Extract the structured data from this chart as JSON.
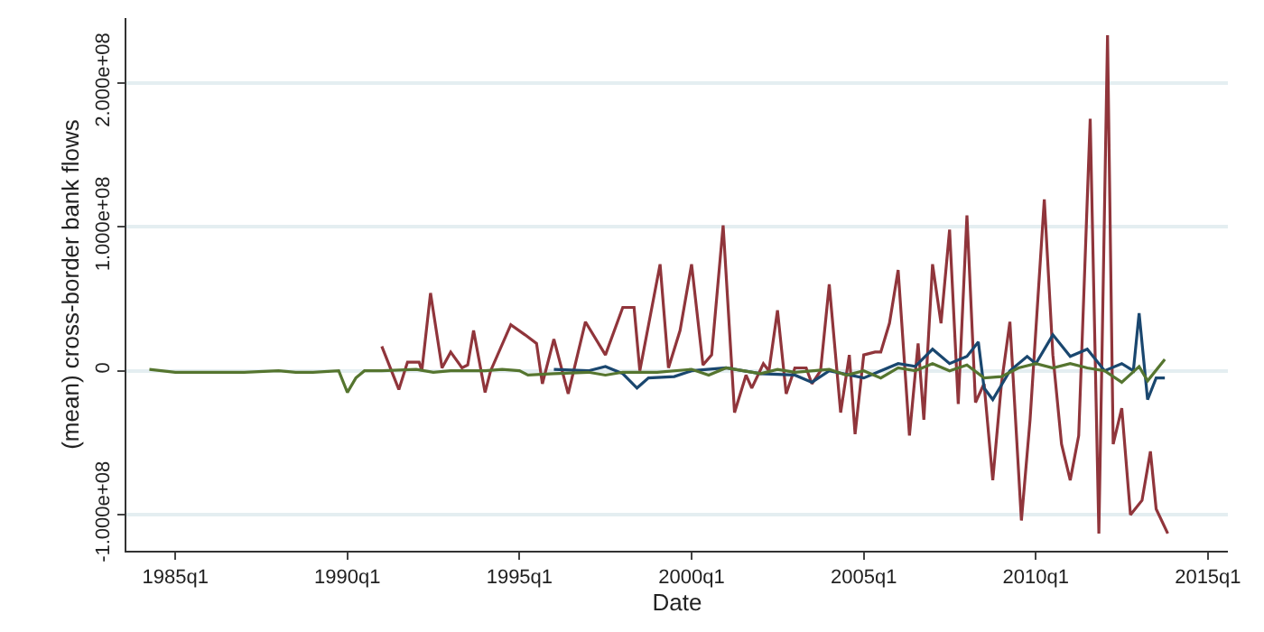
{
  "chart_data": {
    "type": "line",
    "xlabel": "Date",
    "ylabel": "(mean) cross-border bank flows",
    "xlim": [
      "1983-08",
      "2015-08"
    ],
    "xticks": [
      {
        "value": "1985-01",
        "label": "1985q1"
      },
      {
        "value": "1990-01",
        "label": "1990q1"
      },
      {
        "value": "1995-01",
        "label": "1995q1"
      },
      {
        "value": "2000-01",
        "label": "2000q1"
      },
      {
        "value": "2005-01",
        "label": "2005q1"
      },
      {
        "value": "2010-01",
        "label": "2010q1"
      },
      {
        "value": "2015-01",
        "label": "2015q1"
      }
    ],
    "ylim": [
      -125000000.0,
      245000000.0
    ],
    "yticks": [
      {
        "value": -100000000.0,
        "label": "-1.000e+08"
      },
      0,
      {
        "value": 100000000.0,
        "label": "1.000e+08"
      },
      {
        "value": 200000000.0,
        "label": "2.000e+08"
      }
    ],
    "grid": "y",
    "marker": "none",
    "line_style": "solid",
    "series": [
      {
        "color": "#90353b",
        "x": [
          "1991-01",
          "1991-07",
          "1991-10",
          "1992-02",
          "1992-03",
          "1992-06",
          "1992-10",
          "1993-01",
          "1993-05",
          "1993-07",
          "1993-09",
          "1994-01",
          "1994-03",
          "1994-10",
          "1995-03",
          "1995-07",
          "1995-09",
          "1996-01",
          "1996-06",
          "1996-12",
          "1997-07",
          "1998-01",
          "1998-05",
          "1998-07",
          "1999-02",
          "1999-05",
          "1999-09",
          "2000-01",
          "2000-05",
          "2000-08",
          "2000-12",
          "2001-04",
          "2001-08",
          "2001-10",
          "2002-02",
          "2002-04",
          "2002-07",
          "2002-10",
          "2003-01",
          "2003-05",
          "2003-07",
          "2003-10",
          "2004-01",
          "2004-05",
          "2004-08",
          "2004-10",
          "2005-01",
          "2005-05",
          "2005-07",
          "2005-10",
          "2006-01",
          "2006-05",
          "2006-08",
          "2006-10",
          "2007-01",
          "2007-04",
          "2007-07",
          "2007-10",
          "2008-01",
          "2008-04",
          "2008-07",
          "2008-10",
          "2009-01",
          "2009-04",
          "2009-08",
          "2009-11",
          "2010-04",
          "2010-07",
          "2010-10",
          "2011-01",
          "2011-04",
          "2011-08",
          "2011-11",
          "2012-02",
          "2012-04",
          "2012-07",
          "2012-10",
          "2013-02",
          "2013-05",
          "2013-07",
          "2013-11"
        ],
        "values": [
          17000000.0,
          -13000000.0,
          6000000.0,
          6000000.0,
          0,
          54000000.0,
          2000000.0,
          13000000.0,
          2000000.0,
          4000000.0,
          28000000.0,
          -15000000.0,
          0,
          32000000.0,
          25000000.0,
          19000000.0,
          -9000000.0,
          22000000.0,
          -16000000.0,
          34000000.0,
          11000000.0,
          44000000.0,
          44000000.0,
          0,
          74000000.0,
          2000000.0,
          28000000.0,
          74000000.0,
          4000000.0,
          11000000.0,
          101000000.0,
          -29000000.0,
          -3000000.0,
          -12000000.0,
          5000000.0,
          0,
          42000000.0,
          -16000000.0,
          2000000.0,
          2000000.0,
          -9000000.0,
          0,
          60000000.0,
          -29000000.0,
          11000000.0,
          -44000000.0,
          11000000.0,
          13000000.0,
          13000000.0,
          33000000.0,
          70000000.0,
          -45000000.0,
          19000000.0,
          -34000000.0,
          74000000.0,
          33000000.0,
          98000000.0,
          -23000000.0,
          108000000.0,
          -22000000.0,
          -9000000.0,
          -76000000.0,
          -9000000.0,
          34000000.0,
          -104000000.0,
          -34000000.0,
          119000000.0,
          11000000.0,
          -51000000.0,
          -76000000.0,
          -45000000.0,
          175000000.0,
          -113000000.0,
          233000000.0,
          -51000000.0,
          -26000000.0,
          -100000000.0,
          -90000000.0,
          -56000000.0,
          -96000000.0,
          -113000000.0
        ]
      },
      {
        "color": "#1a476f",
        "x": [
          "1996-01",
          "1997-01",
          "1997-07",
          "1998-01",
          "1998-06",
          "1998-10",
          "1999-07",
          "2000-01",
          "2001-01",
          "2002-01",
          "2003-01",
          "2003-07",
          "2004-01",
          "2005-01",
          "2005-07",
          "2006-01",
          "2006-07",
          "2007-01",
          "2007-07",
          "2008-01",
          "2008-05",
          "2008-07",
          "2008-10",
          "2009-04",
          "2009-10",
          "2010-01",
          "2010-07",
          "2011-01",
          "2011-07",
          "2012-01",
          "2012-07",
          "2012-11",
          "2013-01",
          "2013-04",
          "2013-07",
          "2013-10"
        ],
        "values": [
          1000000.0,
          0,
          3000000.0,
          -2000000.0,
          -12000000.0,
          -5000000.0,
          -4000000.0,
          0,
          2000000.0,
          -2000000.0,
          -3000000.0,
          -8000000.0,
          0,
          -5000000.0,
          0,
          5000000.0,
          3000000.0,
          15000000.0,
          5000000.0,
          10000000.0,
          20000000.0,
          -12000000.0,
          -20000000.0,
          0,
          10000000.0,
          5000000.0,
          25000000.0,
          10000000.0,
          15000000.0,
          0,
          5000000.0,
          0,
          40000000.0,
          -20000000.0,
          -5000000.0,
          -5000000.0
        ]
      },
      {
        "color": "#55752f",
        "x": [
          "1984-04",
          "1985-01",
          "1986-01",
          "1987-01",
          "1988-01",
          "1988-07",
          "1989-01",
          "1989-10",
          "1990-01",
          "1990-04",
          "1990-07",
          "1991-01",
          "1992-01",
          "1992-07",
          "1993-01",
          "1994-01",
          "1994-07",
          "1995-01",
          "1995-04",
          "1996-01",
          "1997-01",
          "1997-07",
          "1998-01",
          "1999-01",
          "2000-01",
          "2000-07",
          "2001-01",
          "2001-07",
          "2002-01",
          "2002-07",
          "2003-01",
          "2004-01",
          "2004-07",
          "2005-01",
          "2005-07",
          "2006-01",
          "2006-07",
          "2007-01",
          "2007-07",
          "2008-01",
          "2008-07",
          "2009-01",
          "2009-07",
          "2010-01",
          "2010-07",
          "2011-01",
          "2011-07",
          "2012-01",
          "2012-07",
          "2013-01",
          "2013-04",
          "2013-10"
        ],
        "values": [
          1000000.0,
          -1000000.0,
          -1000000.0,
          -1000000.0,
          0,
          -1000000.0,
          -1000000.0,
          0,
          -15000000.0,
          -5000000.0,
          0,
          0,
          1000000.0,
          -1000000.0,
          0,
          0,
          1000000.0,
          0,
          -3000000.0,
          -2000000.0,
          -1000000.0,
          -3000000.0,
          -1000000.0,
          -1000000.0,
          1000000.0,
          -3000000.0,
          2000000.0,
          0,
          -2000000.0,
          1000000.0,
          -1000000.0,
          1000000.0,
          -3000000.0,
          0,
          -5000000.0,
          2000000.0,
          0,
          5000000.0,
          0,
          4000000.0,
          -5000000.0,
          -4000000.0,
          2000000.0,
          5000000.0,
          2000000.0,
          5000000.0,
          2000000.0,
          0,
          -8000000.0,
          3000000.0,
          -7000000.0,
          8000000.0
        ]
      }
    ]
  }
}
